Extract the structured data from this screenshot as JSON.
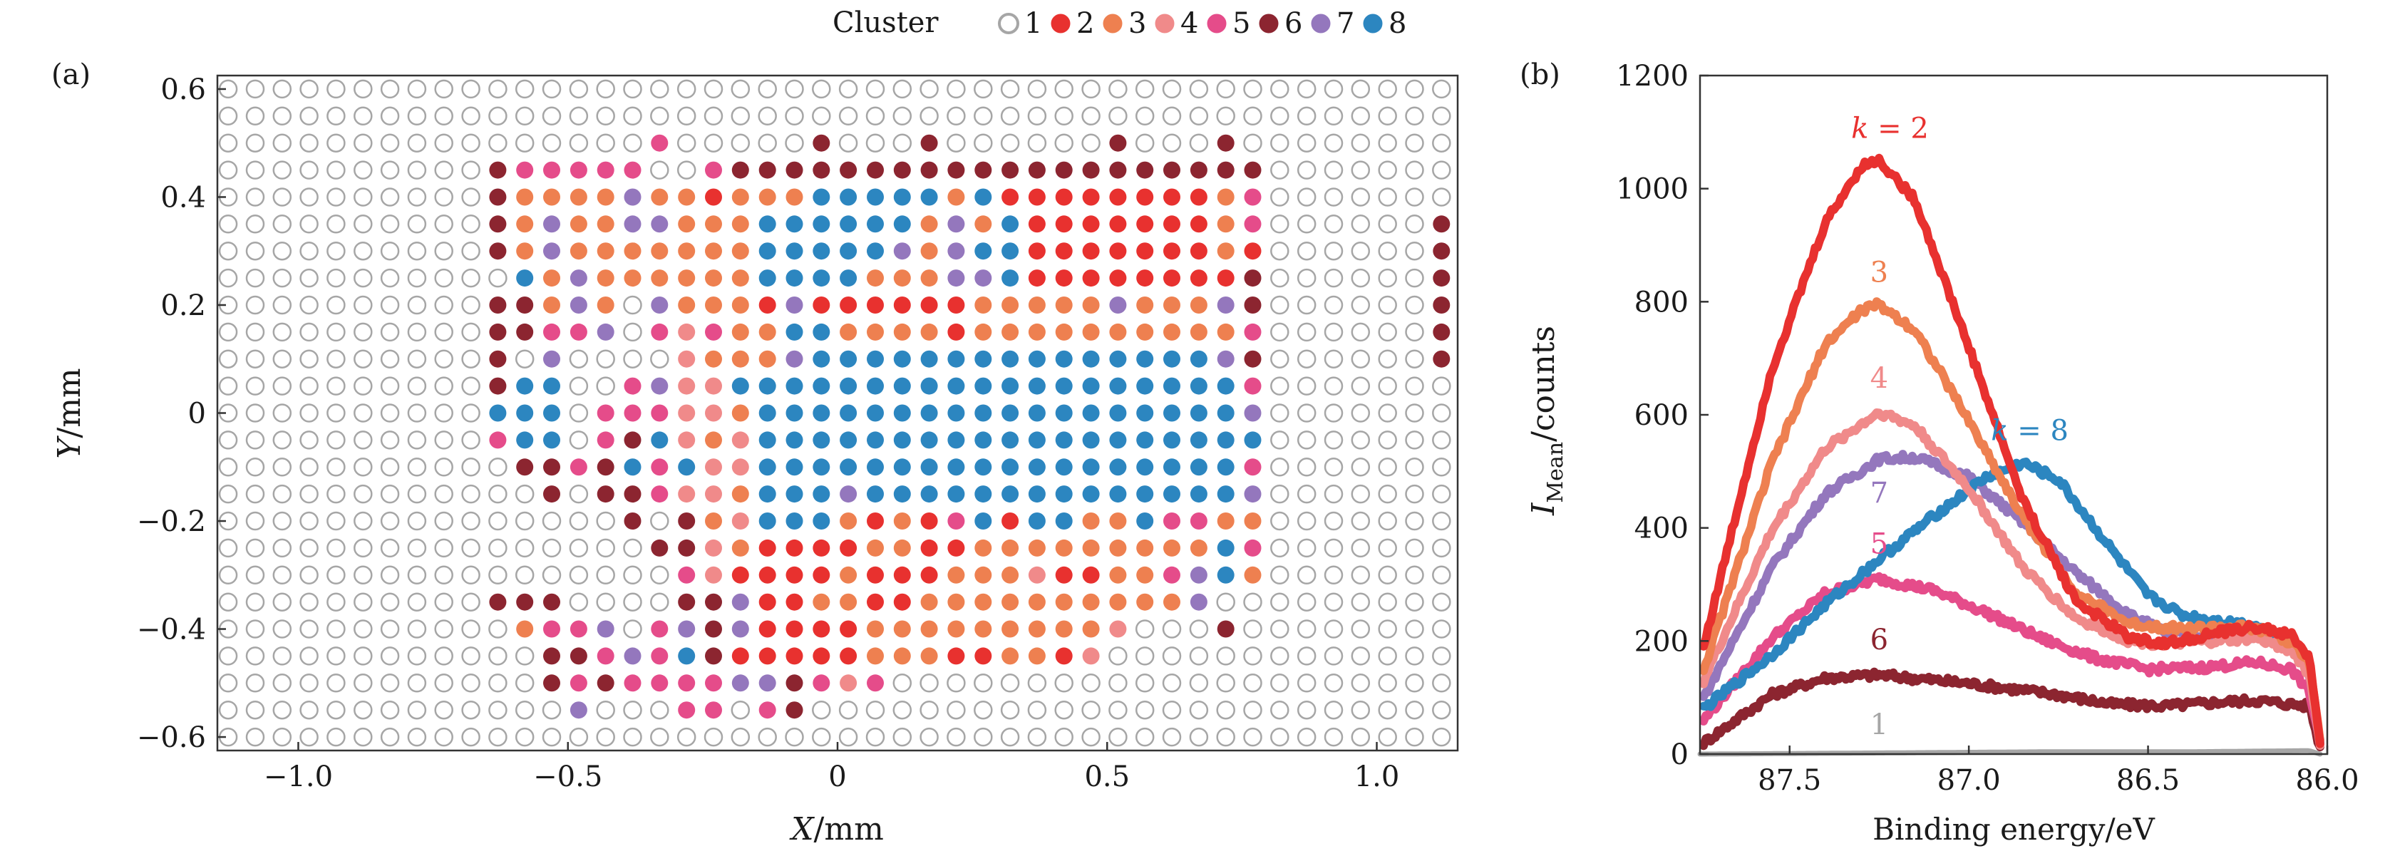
{
  "legend": {
    "title": "Cluster",
    "entries": [
      "1",
      "2",
      "3",
      "4",
      "5",
      "6",
      "7",
      "8"
    ]
  },
  "colors": {
    "c1": "#a6a6a6",
    "c2": "#e8312f",
    "c3": "#ee8050",
    "c4": "#f08a8a",
    "c5": "#e54c8a",
    "c6": "#8c2530",
    "c7": "#9477bd",
    "c8": "#2c86c0"
  },
  "chart_data": [
    {
      "type": "scatter",
      "panel_label": "(a)",
      "title": "",
      "xlabel_var": "X",
      "xlabel_unit": "/mm",
      "ylabel_var": "Y",
      "ylabel_unit": "/mm",
      "xlim": [
        -1.15,
        1.15
      ],
      "ylim": [
        -0.625,
        0.625
      ],
      "xticks": [
        -1.0,
        -0.5,
        0,
        0.5,
        1.0
      ],
      "xtick_labels": [
        "−1.0",
        "−0.5",
        "0",
        "0.5",
        "1.0"
      ],
      "yticks": [
        -0.6,
        -0.4,
        -0.2,
        0,
        0.2,
        0.4,
        0.6
      ],
      "ytick_labels": [
        "−0.6",
        "−0.4",
        "−0.2",
        "0",
        "0.2",
        "0.4",
        "0.6"
      ],
      "grid_x0": -1.13,
      "grid_dx": 0.05,
      "grid_nx": 46,
      "grid_y0": 0.6,
      "grid_dy": -0.05,
      "grid_ny": 25,
      "cluster_rows": [
        "1111111111111111111111111111111111111111111111",
        "1111111111111111111111111111111111111111111111",
        "1111111111111111511111611161111116111611111111",
        "1111111111655555115666666666666666666661111111",
        "1111111111633337332333888883822222222351111111",
        "1111111111637337733388888837382222222351111116",
        "1111111111637333333388888737882222222321111116",
        "1111111111183733333388883337782222222261111116",
        "1111111111663731733327222222333337333761111116",
        "1111111111665571545338833332333333333351111116",
        "1111111111617111143337888888888888888761111116",
        "1111111111688115744888888888888888888851111111",
        "1111111111888155544388888888888888888871111111",
        "1111111111588156843488888888888888888881111111",
        "1111111111166568584488888888888888888851111111",
        "1111111111116166544388878888888888888871111111",
        "1111111111111116163488832325828833855331111111",
        "1111111111111111664322223322333333333851111111",
        "1111111111111111154222232223334223357831111111",
        "1111111111666111166722332233333333337111111111",
        "1111111111135571576722223333333334111611111111",
        "1111111111116657586222223332233241111111111111",
        "1111111111116565555776545111111111111111111111",
        "1111111111111711155156111111111111111111111111",
        "1111111111111111111111111111111111111111111111"
      ],
      "legend_position": "top-center"
    },
    {
      "type": "line",
      "panel_label": "(b)",
      "title": "",
      "xlabel": "Binding energy/eV",
      "ylabel_main": "I",
      "ylabel_sub": "Mean",
      "ylabel_rest": "/counts",
      "xlim": [
        87.75,
        86.0
      ],
      "ylim": [
        0,
        1200
      ],
      "xticks": [
        87.5,
        87.0,
        86.5,
        86.0
      ],
      "xtick_labels": [
        "87.5",
        "87.0",
        "86.5",
        "86.0"
      ],
      "yticks": [
        0,
        200,
        400,
        600,
        800,
        1000,
        1200
      ],
      "ytick_labels": [
        "0",
        "200",
        "400",
        "600",
        "800",
        "1000",
        "1200"
      ],
      "series": [
        {
          "name": "1",
          "color_key": "c1",
          "knots": [
            [
              87.75,
              0
            ],
            [
              87.25,
              2
            ],
            [
              86.8,
              4
            ],
            [
              86.4,
              4
            ],
            [
              86.05,
              6
            ],
            [
              86.02,
              0
            ]
          ]
        },
        {
          "name": "6",
          "color_key": "c6",
          "knots": [
            [
              87.74,
              20
            ],
            [
              87.55,
              105
            ],
            [
              87.4,
              135
            ],
            [
              87.25,
              140
            ],
            [
              87.0,
              125
            ],
            [
              86.75,
              105
            ],
            [
              86.6,
              88
            ],
            [
              86.45,
              85
            ],
            [
              86.3,
              92
            ],
            [
              86.2,
              95
            ],
            [
              86.05,
              85
            ],
            [
              86.02,
              10
            ]
          ]
        },
        {
          "name": "5",
          "color_key": "c5",
          "knots": [
            [
              87.74,
              60
            ],
            [
              87.55,
              205
            ],
            [
              87.4,
              285
            ],
            [
              87.25,
              310
            ],
            [
              87.1,
              290
            ],
            [
              86.95,
              250
            ],
            [
              86.8,
              205
            ],
            [
              86.65,
              170
            ],
            [
              86.5,
              150
            ],
            [
              86.35,
              153
            ],
            [
              86.2,
              162
            ],
            [
              86.1,
              150
            ],
            [
              86.05,
              110
            ],
            [
              86.02,
              20
            ]
          ]
        },
        {
          "name": "7",
          "color_key": "c7",
          "knots": [
            [
              87.74,
              100
            ],
            [
              87.55,
              330
            ],
            [
              87.4,
              460
            ],
            [
              87.25,
              522
            ],
            [
              87.15,
              525
            ],
            [
              87.0,
              490
            ],
            [
              86.85,
              410
            ],
            [
              86.7,
              320
            ],
            [
              86.55,
              245
            ],
            [
              86.45,
              215
            ],
            [
              86.35,
              210
            ],
            [
              86.2,
              210
            ],
            [
              86.1,
              195
            ],
            [
              86.05,
              140
            ],
            [
              86.02,
              20
            ]
          ]
        },
        {
          "name": "8",
          "color_key": "c8",
          "knots": [
            [
              87.74,
              80
            ],
            [
              87.55,
              175
            ],
            [
              87.4,
              265
            ],
            [
              87.25,
              345
            ],
            [
              87.1,
              420
            ],
            [
              86.95,
              490
            ],
            [
              86.85,
              515
            ],
            [
              86.75,
              485
            ],
            [
              86.6,
              360
            ],
            [
              86.5,
              280
            ],
            [
              86.4,
              245
            ],
            [
              86.3,
              235
            ],
            [
              86.2,
              228
            ],
            [
              86.1,
              200
            ],
            [
              86.05,
              160
            ],
            [
              86.02,
              20
            ]
          ]
        },
        {
          "name": "4",
          "color_key": "c4",
          "knots": [
            [
              87.74,
              130
            ],
            [
              87.55,
              395
            ],
            [
              87.4,
              540
            ],
            [
              87.25,
              605
            ],
            [
              87.15,
              580
            ],
            [
              87.0,
              470
            ],
            [
              86.85,
              330
            ],
            [
              86.7,
              240
            ],
            [
              86.55,
              200
            ],
            [
              86.45,
              195
            ],
            [
              86.35,
              198
            ],
            [
              86.2,
              205
            ],
            [
              86.1,
              185
            ],
            [
              86.05,
              140
            ],
            [
              86.02,
              20
            ]
          ]
        },
        {
          "name": "3",
          "color_key": "c3",
          "knots": [
            [
              87.74,
              150
            ],
            [
              87.55,
              515
            ],
            [
              87.4,
              725
            ],
            [
              87.3,
              785
            ],
            [
              87.25,
              795
            ],
            [
              87.15,
              750
            ],
            [
              87.0,
              590
            ],
            [
              86.85,
              420
            ],
            [
              86.7,
              285
            ],
            [
              86.55,
              230
            ],
            [
              86.4,
              222
            ],
            [
              86.25,
              225
            ],
            [
              86.15,
              215
            ],
            [
              86.05,
              170
            ],
            [
              86.02,
              20
            ]
          ]
        },
        {
          "name": "2",
          "color_key": "c2",
          "knots": [
            [
              87.74,
              190
            ],
            [
              87.55,
              680
            ],
            [
              87.4,
              940
            ],
            [
              87.3,
              1040
            ],
            [
              87.25,
              1050
            ],
            [
              87.15,
              980
            ],
            [
              87.0,
              720
            ],
            [
              86.85,
              450
            ],
            [
              86.7,
              270
            ],
            [
              86.55,
              205
            ],
            [
              86.45,
              195
            ],
            [
              86.3,
              215
            ],
            [
              86.2,
              225
            ],
            [
              86.1,
              210
            ],
            [
              86.05,
              170
            ],
            [
              86.02,
              20
            ]
          ]
        }
      ],
      "annotations": [
        {
          "text": "k = 2",
          "series": "2",
          "x": 87.22,
          "y": 1090
        },
        {
          "text": "3",
          "series": "3",
          "x": 87.25,
          "y": 835
        },
        {
          "text": "4",
          "series": "4",
          "x": 87.25,
          "y": 648
        },
        {
          "text": "k = 8",
          "series": "8",
          "x": 86.83,
          "y": 555
        },
        {
          "text": "7",
          "series": "7",
          "x": 87.25,
          "y": 445
        },
        {
          "text": "5",
          "series": "5",
          "x": 87.25,
          "y": 355
        },
        {
          "text": "6",
          "series": "6",
          "x": 87.25,
          "y": 185
        },
        {
          "text": "1",
          "series": "1",
          "x": 87.25,
          "y": 35
        }
      ]
    }
  ]
}
